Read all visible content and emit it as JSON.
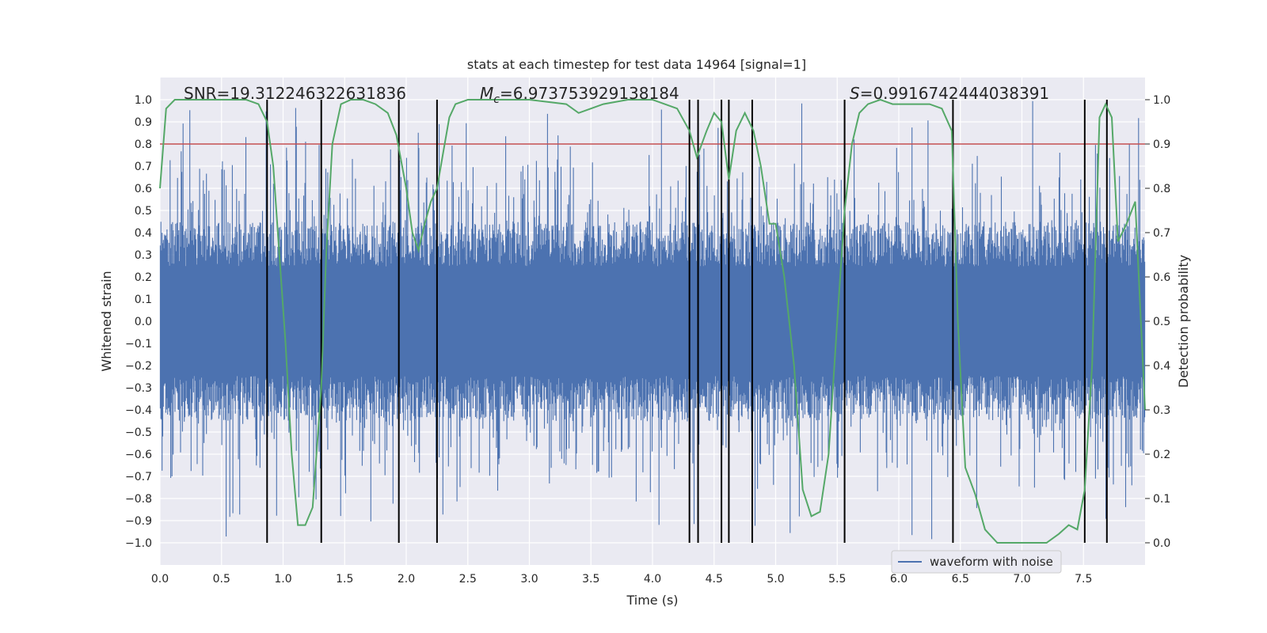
{
  "chart_data": {
    "type": "line",
    "title": "stats at each timestep for test data 14964 [signal=1]",
    "xlabel": "Time (s)",
    "ylabel": "Whitened strain",
    "y2label": "Detection probability",
    "xlim": [
      0.0,
      8.0
    ],
    "ylim": [
      -1.1,
      1.1
    ],
    "y2lim": [
      -0.05,
      1.05
    ],
    "x_ticks": [
      "0.0",
      "0.5",
      "1.0",
      "1.5",
      "2.0",
      "2.5",
      "3.0",
      "3.5",
      "4.0",
      "4.5",
      "5.0",
      "5.5",
      "6.0",
      "6.5",
      "7.0",
      "7.5"
    ],
    "y_ticks": [
      "1.0",
      "0.9",
      "0.8",
      "0.7",
      "0.6",
      "0.5",
      "0.4",
      "0.3",
      "0.2",
      "0.1",
      "0.0",
      "-0.1",
      "-0.2",
      "-0.3",
      "-0.4",
      "-0.5",
      "-0.6",
      "-0.7",
      "-0.8",
      "-0.9",
      "-1.0"
    ],
    "y2_ticks": [
      "1.0",
      "0.9",
      "0.8",
      "0.7",
      "0.6",
      "0.5",
      "0.4",
      "0.3",
      "0.2",
      "0.1",
      "0.0"
    ],
    "annotations": {
      "snr": "SNR=19.312246322631836",
      "mc_symbol": "M",
      "mc_sub": "c",
      "mc_value": "=6.973753929138184",
      "s_symbol": "S",
      "s_value": "=0.9916742444038391"
    },
    "legend": {
      "label": "waveform with noise",
      "position": "lower right"
    },
    "threshold": {
      "y2": 0.9,
      "color": "#c44e52"
    },
    "vertical_lines_x": [
      0.87,
      1.31,
      1.94,
      2.25,
      4.3,
      4.37,
      4.56,
      4.62,
      4.81,
      5.56,
      6.44,
      7.51,
      7.69
    ],
    "waveform": {
      "name": "waveform with noise",
      "color": "#4c72b0",
      "envelope": 0.45,
      "sample_count": 1600,
      "peak_range": [
        -1.0,
        1.0
      ]
    },
    "probability": {
      "name": "Detection probability",
      "color": "#55a868",
      "x": [
        0.0,
        0.05,
        0.12,
        0.3,
        0.5,
        0.7,
        0.8,
        0.87,
        0.92,
        0.97,
        1.02,
        1.07,
        1.12,
        1.18,
        1.24,
        1.31,
        1.35,
        1.4,
        1.47,
        1.55,
        1.65,
        1.75,
        1.85,
        1.92,
        2.0,
        2.05,
        2.1,
        2.15,
        2.2,
        2.25,
        2.3,
        2.35,
        2.4,
        2.5,
        2.7,
        3.0,
        3.3,
        3.4,
        3.5,
        3.6,
        3.8,
        4.0,
        4.1,
        4.2,
        4.3,
        4.36,
        4.44,
        4.5,
        4.56,
        4.62,
        4.68,
        4.75,
        4.82,
        4.88,
        4.95,
        5.0,
        5.07,
        5.15,
        5.22,
        5.29,
        5.36,
        5.43,
        5.5,
        5.56,
        5.62,
        5.68,
        5.75,
        5.85,
        5.95,
        6.05,
        6.15,
        6.25,
        6.35,
        6.43,
        6.48,
        6.54,
        6.62,
        6.7,
        6.8,
        6.9,
        7.0,
        7.1,
        7.2,
        7.3,
        7.38,
        7.45,
        7.51,
        7.57,
        7.63,
        7.68,
        7.73,
        7.78,
        7.85,
        7.92,
        8.0
      ],
      "y": [
        0.8,
        0.98,
        1.0,
        1.0,
        1.0,
        1.0,
        0.99,
        0.95,
        0.85,
        0.65,
        0.45,
        0.2,
        0.04,
        0.04,
        0.08,
        0.35,
        0.65,
        0.9,
        0.99,
        1.0,
        1.0,
        0.99,
        0.97,
        0.92,
        0.8,
        0.7,
        0.66,
        0.72,
        0.77,
        0.8,
        0.88,
        0.96,
        0.99,
        1.0,
        1.0,
        1.0,
        0.99,
        0.97,
        0.98,
        0.99,
        1.0,
        1.0,
        0.99,
        0.98,
        0.93,
        0.87,
        0.93,
        0.97,
        0.95,
        0.82,
        0.93,
        0.97,
        0.93,
        0.85,
        0.72,
        0.72,
        0.6,
        0.4,
        0.12,
        0.06,
        0.07,
        0.2,
        0.5,
        0.75,
        0.9,
        0.97,
        0.99,
        1.0,
        0.99,
        0.99,
        0.99,
        0.99,
        0.98,
        0.93,
        0.5,
        0.17,
        0.11,
        0.03,
        0.0,
        0.0,
        0.0,
        0.0,
        0.0,
        0.02,
        0.04,
        0.03,
        0.12,
        0.4,
        0.96,
        0.99,
        0.96,
        0.68,
        0.72,
        0.77,
        0.3
      ]
    }
  }
}
